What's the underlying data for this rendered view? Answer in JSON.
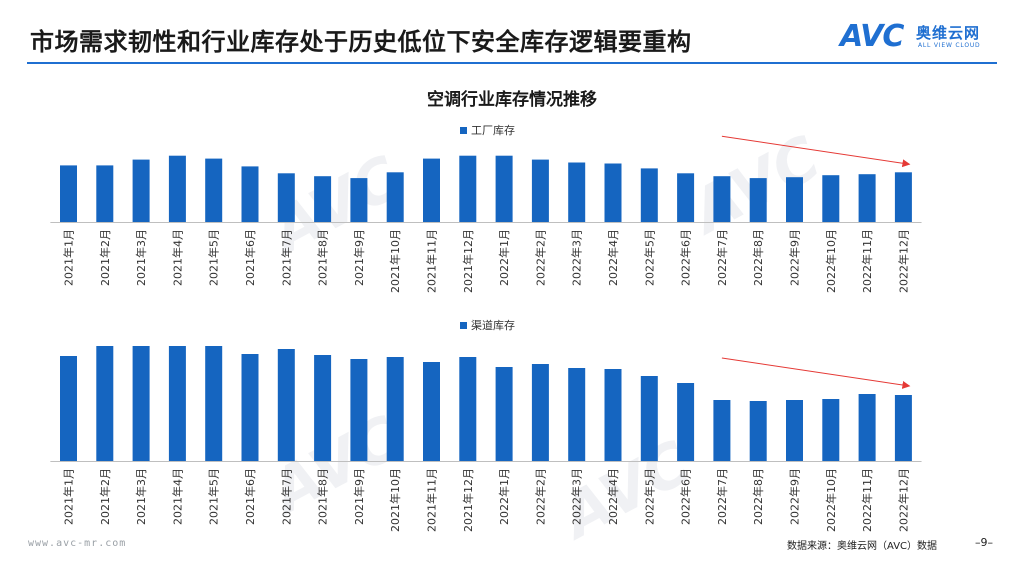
{
  "header": {
    "title": "市场需求韧性和行业库存处于历史低位下安全库存逻辑要重构",
    "logo_text": "AVC",
    "logo_cn": "奥维云网",
    "logo_en": "ALL VIEW CLOUD"
  },
  "chart_title": "空调行业库存情况推移",
  "footer": {
    "url": "www.avc-mr.com",
    "source": "数据来源：奥维云网（AVC）数据",
    "page": "–9–"
  },
  "colors": {
    "bar": "#1565c0",
    "accent": "#1f6fd1",
    "arrow": "#e53935"
  },
  "chart_data": [
    {
      "type": "bar",
      "legend": "工厂库存",
      "categories": [
        "2021年1月",
        "2021年2月",
        "2021年3月",
        "2021年4月",
        "2021年5月",
        "2021年6月",
        "2021年7月",
        "2021年8月",
        "2021年9月",
        "2021年10月",
        "2021年11月",
        "2021年12月",
        "2022年1月",
        "2022年2月",
        "2022年3月",
        "2022年4月",
        "2022年5月",
        "2022年6月",
        "2022年7月",
        "2022年8月",
        "2022年9月",
        "2022年10月",
        "2022年11月",
        "2022年12月"
      ],
      "values": [
        58,
        58,
        64,
        68,
        65,
        57,
        50,
        47,
        45,
        51,
        65,
        68,
        68,
        64,
        61,
        60,
        55,
        50,
        47,
        45,
        46,
        48,
        49,
        51
      ],
      "ylim": [
        0,
        80
      ],
      "trend_arrow": {
        "from_index": 18,
        "to_index": 23
      }
    },
    {
      "type": "bar",
      "legend": "渠道库存",
      "categories": [
        "2021年1月",
        "2021年2月",
        "2021年3月",
        "2021年4月",
        "2021年5月",
        "2021年6月",
        "2021年7月",
        "2021年8月",
        "2021年9月",
        "2021年10月",
        "2021年11月",
        "2021年12月",
        "2022年1月",
        "2022年2月",
        "2022年3月",
        "2022年4月",
        "2022年5月",
        "2022年6月",
        "2022年7月",
        "2022年8月",
        "2022年9月",
        "2022年10月",
        "2022年11月",
        "2022年12月"
      ],
      "values": [
        105,
        115,
        115,
        115,
        115,
        107,
        112,
        106,
        102,
        104,
        99,
        104,
        94,
        97,
        93,
        92,
        85,
        78,
        61,
        60,
        61,
        62,
        67,
        66
      ],
      "ylim": [
        0,
        130
      ],
      "trend_arrow": {
        "from_index": 18,
        "to_index": 23
      }
    }
  ]
}
